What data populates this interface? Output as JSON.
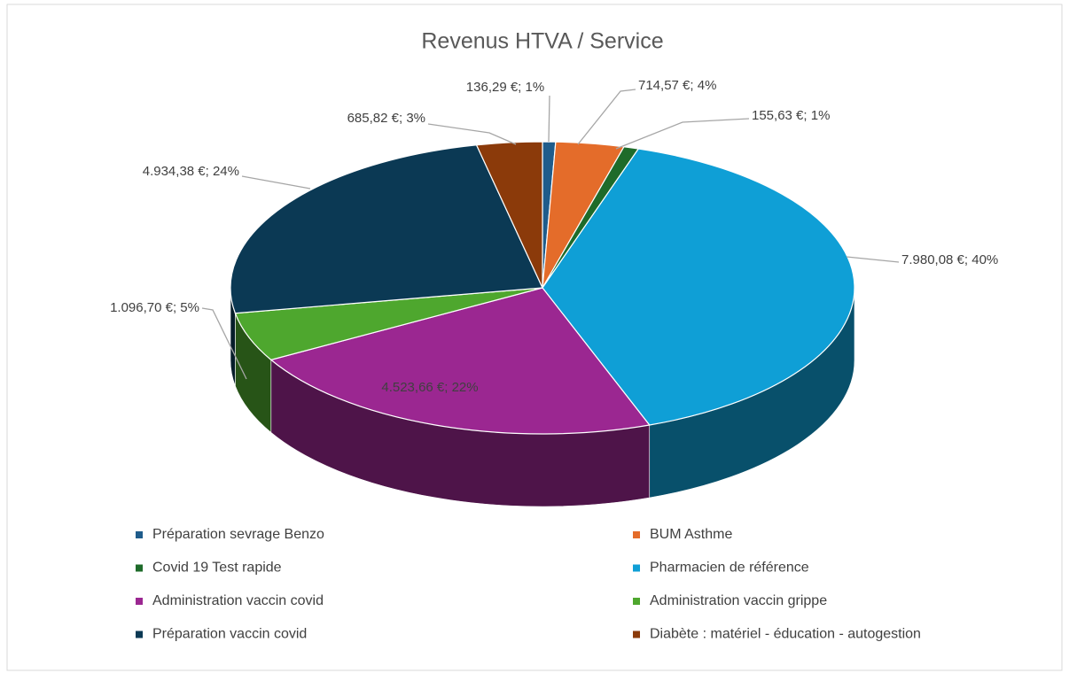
{
  "chart_data": {
    "type": "pie",
    "title": "Revenus HTVA / Service",
    "categories": [
      "Préparation sevrage Benzo",
      "BUM Asthme",
      "Covid 19 Test rapide",
      "Pharmacien de référence",
      "Administration vaccin covid",
      "Administration vaccin grippe",
      "Préparation vaccin covid",
      "Diabète : matériel - éducation - autogestion"
    ],
    "values": [
      136.29,
      714.57,
      155.63,
      7980.08,
      4523.66,
      1096.7,
      4934.38,
      685.82
    ],
    "value_labels": [
      "136,29 €; 1%",
      "714,57 €; 4%",
      "155,63 €; 1%",
      "7.980,08 €; 40%",
      "4.523,66 €; 22%",
      "1.096,70 €; 5%",
      "4.934,38 €; 24%",
      "685,82 €; 3%"
    ],
    "colors": [
      "#1f5c8b",
      "#e46c2a",
      "#1e6b2a",
      "#0f9fd6",
      "#9b2791",
      "#4ea72e",
      "#0b3954",
      "#8b3a0a"
    ],
    "legend": "bottom"
  }
}
